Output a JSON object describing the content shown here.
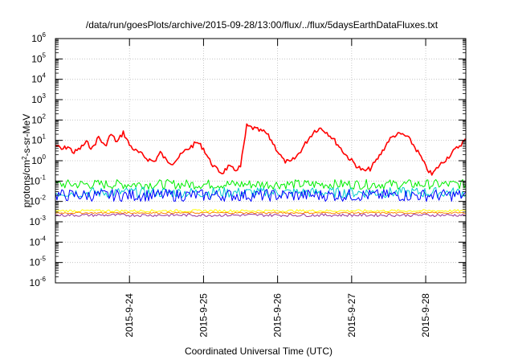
{
  "chart_data": {
    "type": "line",
    "title": "/data/run/goesPlots/archive/2015-09-28/13:00/flux/../flux/5daysEarthDataFluxes.txt",
    "xlabel": "Coordinated Universal Time (UTC)",
    "ylabel": {
      "prefix": "protons/cm",
      "sup": "2",
      "suffix": "-s-sr-MeV"
    },
    "y_scale": "log",
    "ylim": [
      1e-06,
      1000000.0
    ],
    "y_ticks": [
      {
        "base": "10",
        "exp": "-6",
        "value": 1e-06
      },
      {
        "base": "10",
        "exp": "-5",
        "value": 1e-05
      },
      {
        "base": "10",
        "exp": "-4",
        "value": 0.0001
      },
      {
        "base": "10",
        "exp": "-3",
        "value": 0.001
      },
      {
        "base": "10",
        "exp": "-2",
        "value": 0.01
      },
      {
        "base": "10",
        "exp": "-1",
        "value": 0.1
      },
      {
        "base": "10",
        "exp": "0",
        "value": 1
      },
      {
        "base": "10",
        "exp": "1",
        "value": 10
      },
      {
        "base": "10",
        "exp": "2",
        "value": 100
      },
      {
        "base": "10",
        "exp": "3",
        "value": 1000
      },
      {
        "base": "10",
        "exp": "4",
        "value": 10000
      },
      {
        "base": "10",
        "exp": "5",
        "value": 100000
      },
      {
        "base": "10",
        "exp": "6",
        "value": 1000000
      }
    ],
    "x_range": [
      "2015-09-23 00:00",
      "2015-09-28 13:00"
    ],
    "x_ticks": [
      {
        "label": "2015-9-24",
        "time": "2015-09-24"
      },
      {
        "label": "2015-9-25",
        "time": "2015-09-25"
      },
      {
        "label": "2015-9-26",
        "time": "2015-09-26"
      },
      {
        "label": "2015-9-27",
        "time": "2015-09-27"
      },
      {
        "label": "2015-9-28",
        "time": "2015-09-28"
      }
    ],
    "grid": true,
    "series": [
      {
        "color": "#ff0000",
        "values": [
          [
            "2015-09-23 00:00",
            6
          ],
          [
            "2015-09-23 02:00",
            3.5
          ],
          [
            "2015-09-23 04:00",
            5
          ],
          [
            "2015-09-23 06:00",
            2.5
          ],
          [
            "2015-09-23 08:00",
            4
          ],
          [
            "2015-09-23 10:00",
            8
          ],
          [
            "2015-09-23 12:00",
            4
          ],
          [
            "2015-09-23 14:00",
            15
          ],
          [
            "2015-09-23 16:00",
            5
          ],
          [
            "2015-09-23 18:00",
            20
          ],
          [
            "2015-09-23 20:00",
            8
          ],
          [
            "2015-09-23 22:00",
            25
          ],
          [
            "2015-09-24 00:00",
            6
          ],
          [
            "2015-09-24 02:00",
            3
          ],
          [
            "2015-09-24 04:00",
            2
          ],
          [
            "2015-09-24 06:00",
            1.2
          ],
          [
            "2015-09-24 08:00",
            0.9
          ],
          [
            "2015-09-24 10:00",
            2.5
          ],
          [
            "2015-09-24 12:00",
            1
          ],
          [
            "2015-09-24 14:00",
            0.8
          ],
          [
            "2015-09-24 16:00",
            1.5
          ],
          [
            "2015-09-24 18:00",
            3
          ],
          [
            "2015-09-24 20:00",
            5
          ],
          [
            "2015-09-24 22:00",
            8
          ],
          [
            "2015-09-25 00:00",
            4
          ],
          [
            "2015-09-25 02:00",
            1
          ],
          [
            "2015-09-25 04:00",
            0.4
          ],
          [
            "2015-09-25 06:00",
            0.25
          ],
          [
            "2015-09-25 08:00",
            0.5
          ],
          [
            "2015-09-25 10:00",
            0.35
          ],
          [
            "2015-09-25 12:00",
            0.5
          ],
          [
            "2015-09-25 14:00",
            50
          ],
          [
            "2015-09-25 16:00",
            40
          ],
          [
            "2015-09-25 18:00",
            30
          ],
          [
            "2015-09-25 20:00",
            25
          ],
          [
            "2015-09-25 22:00",
            10
          ],
          [
            "2015-09-26 00:00",
            3
          ],
          [
            "2015-09-26 02:00",
            1
          ],
          [
            "2015-09-26 04:00",
            0.8
          ],
          [
            "2015-09-26 06:00",
            1.5
          ],
          [
            "2015-09-26 08:00",
            4
          ],
          [
            "2015-09-26 10:00",
            12
          ],
          [
            "2015-09-26 12:00",
            30
          ],
          [
            "2015-09-26 14:00",
            40
          ],
          [
            "2015-09-26 16:00",
            25
          ],
          [
            "2015-09-26 18:00",
            12
          ],
          [
            "2015-09-26 20:00",
            5
          ],
          [
            "2015-09-26 22:00",
            2
          ],
          [
            "2015-09-27 00:00",
            1
          ],
          [
            "2015-09-27 02:00",
            0.5
          ],
          [
            "2015-09-27 04:00",
            0.3
          ],
          [
            "2015-09-27 06:00",
            0.4
          ],
          [
            "2015-09-27 08:00",
            1
          ],
          [
            "2015-09-27 10:00",
            3
          ],
          [
            "2015-09-27 12:00",
            10
          ],
          [
            "2015-09-27 14:00",
            18
          ],
          [
            "2015-09-27 16:00",
            20
          ],
          [
            "2015-09-27 18:00",
            15
          ],
          [
            "2015-09-27 20:00",
            6
          ],
          [
            "2015-09-27 22:00",
            2
          ],
          [
            "2015-09-28 00:00",
            0.5
          ],
          [
            "2015-09-28 02:00",
            0.2
          ],
          [
            "2015-09-28 04:00",
            0.5
          ],
          [
            "2015-09-28 06:00",
            1
          ],
          [
            "2015-09-28 08:00",
            2
          ],
          [
            "2015-09-28 10:00",
            4
          ],
          [
            "2015-09-28 12:00",
            8
          ],
          [
            "2015-09-28 13:00",
            10
          ]
        ]
      },
      {
        "color": "#00ee00",
        "band": [
          0.04,
          0.12
        ]
      },
      {
        "color": "#00cccc",
        "band": [
          0.015,
          0.05
        ]
      },
      {
        "color": "#0000ff",
        "band": [
          0.01,
          0.04
        ]
      },
      {
        "color": "#ffff00",
        "band": [
          0.003,
          0.004
        ]
      },
      {
        "color": "#ff8800",
        "band": [
          0.0025,
          0.003
        ]
      },
      {
        "color": "#993399",
        "band": [
          0.0018,
          0.0025
        ]
      }
    ]
  }
}
